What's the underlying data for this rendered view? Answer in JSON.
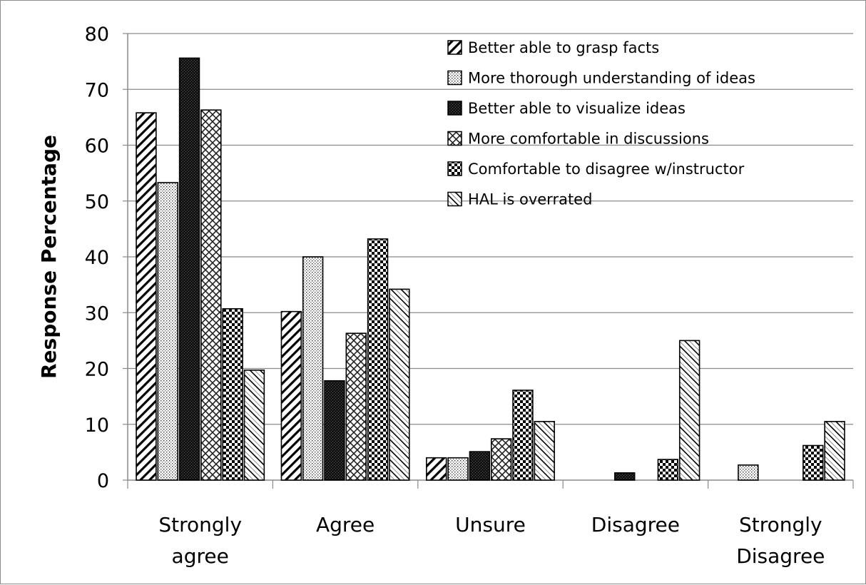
{
  "chart_data": {
    "type": "bar",
    "ylabel": "Response Percentage",
    "xlabel": "",
    "ylim": [
      0,
      80
    ],
    "yticks": [
      0,
      10,
      20,
      30,
      40,
      50,
      60,
      70,
      80
    ],
    "grid": true,
    "legend_position": "top-right",
    "categories": [
      [
        "Strongly",
        "agree"
      ],
      [
        "Agree"
      ],
      [
        "Unsure"
      ],
      [
        "Disagree"
      ],
      [
        "Strongly",
        "Disagree"
      ]
    ],
    "series": [
      {
        "name": "Better able to grasp facts",
        "pattern": "diag-forward",
        "values": [
          65.8,
          30.2,
          4.0,
          0,
          0
        ]
      },
      {
        "name": "More thorough understanding of ideas",
        "pattern": "dots",
        "values": [
          53.3,
          40.0,
          4.0,
          0,
          2.7
        ]
      },
      {
        "name": "Better able to visualize ideas",
        "pattern": "dark",
        "values": [
          75.6,
          17.8,
          5.1,
          1.3,
          0
        ]
      },
      {
        "name": "More comfortable in discussions",
        "pattern": "crosshatch",
        "values": [
          66.3,
          26.3,
          7.4,
          0,
          0
        ]
      },
      {
        "name": "Comfortable to disagree w/instructor",
        "pattern": "checker",
        "values": [
          30.7,
          43.2,
          16.1,
          3.7,
          6.2
        ]
      },
      {
        "name": "HAL is overrated",
        "pattern": "diag-back",
        "values": [
          19.7,
          34.2,
          10.5,
          25.0,
          10.5
        ]
      }
    ]
  }
}
